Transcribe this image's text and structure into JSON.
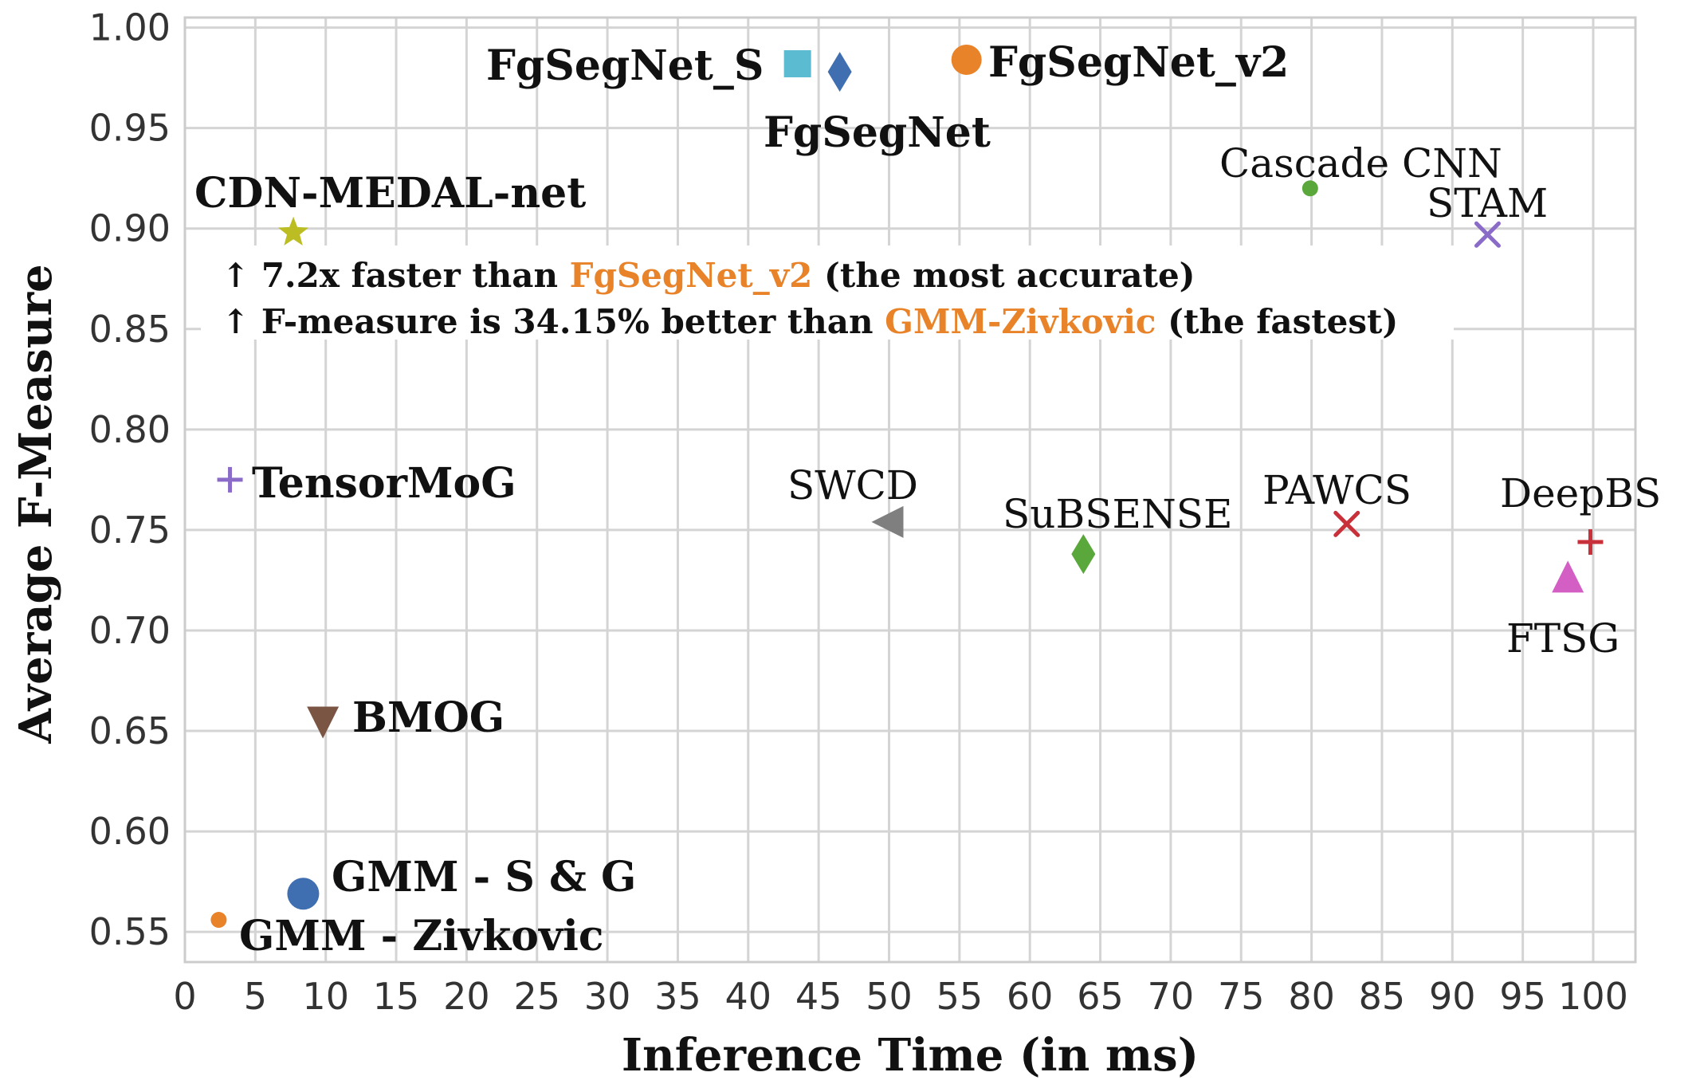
{
  "chart_data": {
    "type": "scatter",
    "title": "",
    "xlabel": "Inference Time (in ms)",
    "ylabel": "Average F-Measure",
    "xlim": [
      0,
      103
    ],
    "ylim": [
      0.535,
      1.005
    ],
    "xticks": [
      0,
      5,
      10,
      15,
      20,
      25,
      30,
      35,
      40,
      45,
      50,
      55,
      60,
      65,
      70,
      75,
      80,
      85,
      90,
      95,
      100
    ],
    "xtick_labels": [
      "0",
      "5",
      "10",
      "15",
      "20",
      "25",
      "30",
      "35",
      "40",
      "45",
      "50",
      "55",
      "60",
      "65",
      "70",
      "75",
      "80",
      "85",
      "90",
      "95",
      "100"
    ],
    "yticks": [
      0.55,
      0.6,
      0.65,
      0.7,
      0.75,
      0.8,
      0.85,
      0.9,
      0.95,
      1.0
    ],
    "ytick_labels": [
      "0.55",
      "0.60",
      "0.65",
      "0.70",
      "0.75",
      "0.80",
      "0.85",
      "0.90",
      "0.95",
      "1.00"
    ],
    "grid": true,
    "points": [
      {
        "name": "CDN-MEDAL-net",
        "x": 7.7,
        "y": 0.898,
        "marker": "star",
        "color": "#bcbd22",
        "label_color": "#d62728"
      },
      {
        "name": "FgSegNet_S",
        "x": 43.5,
        "y": 0.982,
        "marker": "square",
        "color": "#5bbcd1"
      },
      {
        "name": "FgSegNet",
        "x": 46.5,
        "y": 0.978,
        "marker": "diamond",
        "color": "#3f6fb0"
      },
      {
        "name": "FgSegNet_v2",
        "x": 55.5,
        "y": 0.984,
        "marker": "circle",
        "color": "#e8832a"
      },
      {
        "name": "Cascade CNN",
        "x": 79.9,
        "y": 0.92,
        "marker": "circle-small",
        "color": "#5aa83c"
      },
      {
        "name": "STAM",
        "x": 92.5,
        "y": 0.897,
        "marker": "x",
        "color": "#8a6cc8"
      },
      {
        "name": "TensorMoG",
        "x": 3.2,
        "y": 0.775,
        "marker": "plus",
        "color": "#8a6cc8"
      },
      {
        "name": "SWCD",
        "x": 50.0,
        "y": 0.754,
        "marker": "triangle-left",
        "color": "#7f7f7f"
      },
      {
        "name": "SuBSENSE",
        "x": 63.8,
        "y": 0.738,
        "marker": "diamond",
        "color": "#5aa83c"
      },
      {
        "name": "PAWCS",
        "x": 82.5,
        "y": 0.753,
        "marker": "x",
        "color": "#c8303a"
      },
      {
        "name": "DeepBS",
        "x": 99.8,
        "y": 0.744,
        "marker": "plus",
        "color": "#c8303a"
      },
      {
        "name": "FTSG",
        "x": 98.2,
        "y": 0.726,
        "marker": "triangle-up",
        "color": "#d45fc4"
      },
      {
        "name": "BMOG",
        "x": 9.8,
        "y": 0.655,
        "marker": "triangle-down",
        "color": "#7b5544"
      },
      {
        "name": "GMM - S & G",
        "x": 8.4,
        "y": 0.569,
        "marker": "circle-big",
        "color": "#3f6fb0"
      },
      {
        "name": "GMM - Zivkovic",
        "x": 2.4,
        "y": 0.556,
        "marker": "circle-small",
        "color": "#e8832a"
      }
    ],
    "annotations": [
      {
        "parts": [
          {
            "text": "↑ 7.2x faster than ",
            "style": "bold"
          },
          {
            "text": "FgSegNet_v2",
            "style": "highlight-bold"
          },
          {
            "text": " (the most accurate)",
            "style": "bold"
          }
        ]
      },
      {
        "parts": [
          {
            "text": "↑ F-measure is 34.15% better than ",
            "style": "bold"
          },
          {
            "text": "GMM-Zivkovic",
            "style": "highlight-bold"
          },
          {
            "text": " (the fastest)",
            "style": "bold"
          }
        ]
      }
    ]
  }
}
